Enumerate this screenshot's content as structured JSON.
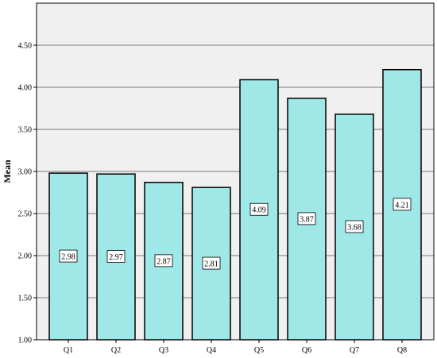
{
  "chart_data": {
    "type": "bar",
    "categories": [
      "Q1",
      "Q2",
      "Q3",
      "Q4",
      "Q5",
      "Q6",
      "Q7",
      "Q8"
    ],
    "values": [
      2.98,
      2.97,
      2.87,
      2.81,
      4.09,
      3.87,
      3.68,
      4.21
    ],
    "data_labels": [
      "2.98",
      "2.97",
      "2.87",
      "2.81",
      "4.09",
      "3.87",
      "3.68",
      "4.21"
    ],
    "ylabel": "Mean",
    "ylim": [
      1.0,
      5.0
    ],
    "yticks": [
      1.0,
      1.5,
      2.0,
      2.5,
      3.0,
      3.5,
      4.0,
      4.5
    ],
    "ytick_labels": [
      "1.00",
      "1.50",
      "2.00",
      "2.50",
      "3.00",
      "3.50",
      "4.00",
      "4.50"
    ],
    "grid": "horizontal",
    "bar_color": "#a0e8e8",
    "plot_background": "#f0f0f0",
    "legend": "none"
  }
}
